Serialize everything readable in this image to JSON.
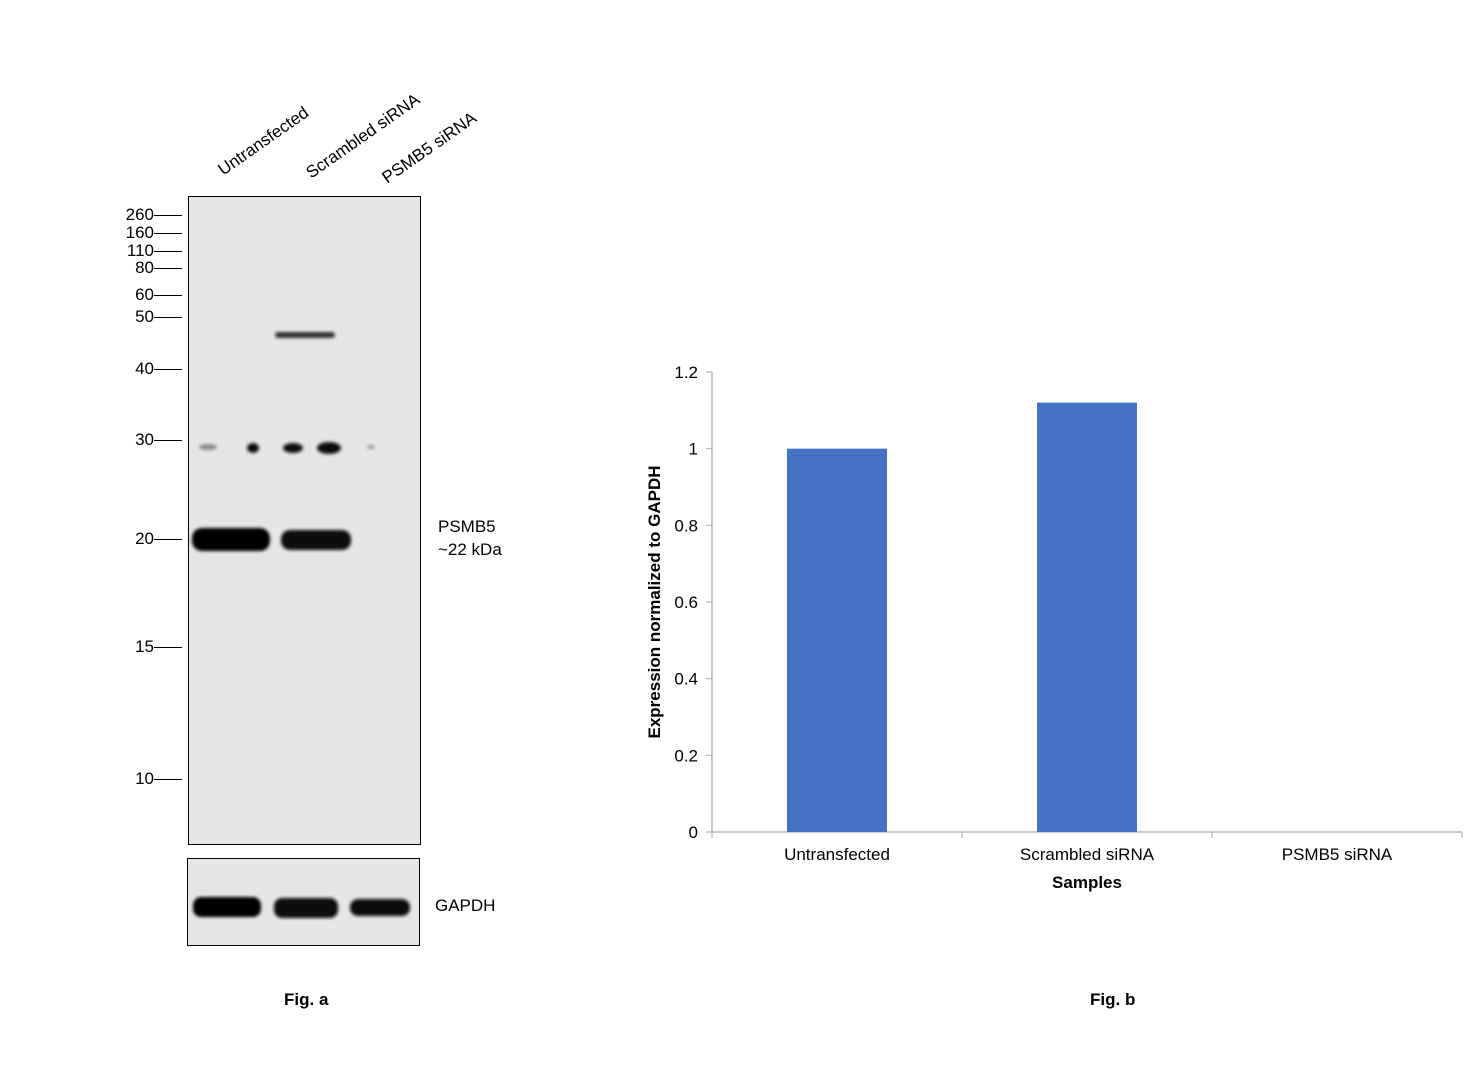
{
  "blot": {
    "lanes": [
      "Untransfected",
      "Scrambled siRNA",
      "PSMB5 siRNA"
    ],
    "markers": [
      "260",
      "160",
      "110",
      "80",
      "60",
      "50",
      "40",
      "30",
      "20",
      "15",
      "10"
    ],
    "target_label": "PSMB5",
    "target_size": "~22 kDa",
    "loading_control": "GAPDH",
    "caption": "Fig. a"
  },
  "chart_data": {
    "type": "bar",
    "categories": [
      "Untransfected",
      "Scrambled siRNA",
      "PSMB5 siRNA"
    ],
    "values": [
      1.0,
      1.12,
      0.0
    ],
    "xlabel": "Samples",
    "ylabel": "Expression normalized to GAPDH",
    "ylim": [
      0,
      1.2
    ],
    "yticks": [
      "0",
      "0.2",
      "0.4",
      "0.6",
      "0.8",
      "1",
      "1.2"
    ],
    "grid": false,
    "bar_color": "#4472C4",
    "caption": "Fig. b"
  }
}
